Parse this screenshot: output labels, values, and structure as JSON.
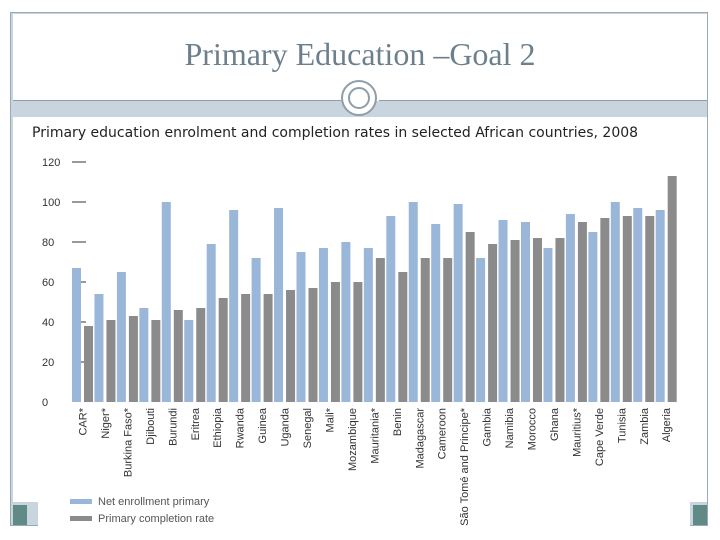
{
  "slide": {
    "title": "Primary Education –Goal 2",
    "subtitle": "Primary education enrolment and completion rates in selected African countries, 2008"
  },
  "colors": {
    "enrollment": "#9ab6d8",
    "completion": "#8b8b8b",
    "axis": "#333333"
  },
  "chart_data": {
    "type": "bar",
    "title": "Primary education enrolment and completion rates in selected African countries, 2008",
    "xlabel": "",
    "ylabel": "",
    "ylim": [
      0,
      120
    ],
    "yticks": [
      0,
      20,
      40,
      60,
      80,
      100,
      120
    ],
    "grid": false,
    "legend_position": "bottom-left",
    "categories": [
      "CAR*",
      "Niger*",
      "Burkina Faso*",
      "Djibouti",
      "Burundi",
      "Eritrea",
      "Ethiopia",
      "Rwanda",
      "Guinea",
      "Uganda",
      "Senegal",
      "Mali*",
      "Mozambique",
      "Mauritania*",
      "Benin",
      "Madagascar",
      "Cameroon",
      "São Tomé and Principe*",
      "Gambia",
      "Namibia",
      "Morocco",
      "Ghana",
      "Mauritius*",
      "Cape Verde",
      "Tunisia",
      "Zambia",
      "Algeria"
    ],
    "series": [
      {
        "name": "Net enrollment primary",
        "values": [
          67,
          54,
          65,
          47,
          100,
          41,
          79,
          96,
          72,
          97,
          75,
          77,
          80,
          77,
          93,
          100,
          89,
          99,
          72,
          91,
          90,
          77,
          94,
          85,
          100,
          97,
          96
        ]
      },
      {
        "name": "Primary completion rate",
        "values": [
          38,
          41,
          43,
          41,
          46,
          47,
          52,
          54,
          54,
          56,
          57,
          60,
          60,
          72,
          65,
          72,
          72,
          85,
          79,
          81,
          82,
          82,
          90,
          92,
          93,
          93,
          113
        ]
      }
    ]
  }
}
